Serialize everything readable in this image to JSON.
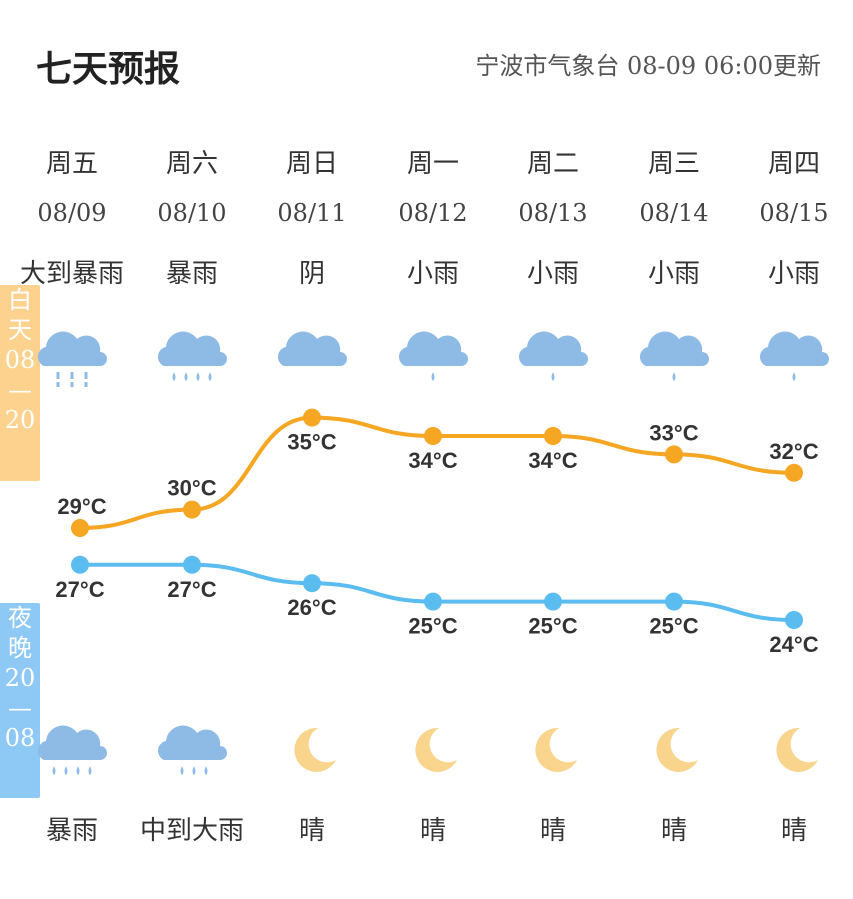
{
  "header": {
    "title": "七天预报",
    "source": "宁波市气象台",
    "update_time": "08-09 06:00更新"
  },
  "side_labels": {
    "day": [
      "白",
      "天",
      "08",
      "—",
      "20"
    ],
    "night": [
      "夜",
      "晚",
      "20",
      "—",
      "08"
    ]
  },
  "days": [
    {
      "weekday": "周五",
      "date": "08/09",
      "day_weather": "大到暴雨",
      "day_icon": "heavy-rain-icon",
      "night_weather": "暴雨",
      "night_icon": "heavy-rain-icon"
    },
    {
      "weekday": "周六",
      "date": "08/10",
      "day_weather": "暴雨",
      "day_icon": "heavy-rain-icon",
      "night_weather": "中到大雨",
      "night_icon": "moderate-rain-icon"
    },
    {
      "weekday": "周日",
      "date": "08/11",
      "day_weather": "阴",
      "day_icon": "overcast-icon",
      "night_weather": "晴",
      "night_icon": "moon-icon"
    },
    {
      "weekday": "周一",
      "date": "08/12",
      "day_weather": "小雨",
      "day_icon": "light-rain-icon",
      "night_weather": "晴",
      "night_icon": "moon-icon"
    },
    {
      "weekday": "周二",
      "date": "08/13",
      "day_weather": "小雨",
      "day_icon": "light-rain-icon",
      "night_weather": "晴",
      "night_icon": "moon-icon"
    },
    {
      "weekday": "周三",
      "date": "08/14",
      "day_weather": "小雨",
      "day_icon": "light-rain-icon",
      "night_weather": "晴",
      "night_icon": "moon-icon"
    },
    {
      "weekday": "周四",
      "date": "08/15",
      "day_weather": "小雨",
      "day_icon": "light-rain-icon",
      "night_weather": "晴",
      "night_icon": "moon-icon"
    }
  ],
  "colors": {
    "high": "#f5a623",
    "low": "#5bbcf0",
    "cloud": "#8dbbe6",
    "moon": "#f8d48c"
  },
  "chart_data": {
    "type": "line",
    "x": [
      "08/09",
      "08/10",
      "08/11",
      "08/12",
      "08/13",
      "08/14",
      "08/15"
    ],
    "unit": "°C",
    "series": [
      {
        "values": [
          29,
          30,
          35,
          34,
          34,
          33,
          32
        ]
      },
      {
        "values": [
          27,
          27,
          26,
          25,
          25,
          25,
          24
        ]
      }
    ]
  }
}
